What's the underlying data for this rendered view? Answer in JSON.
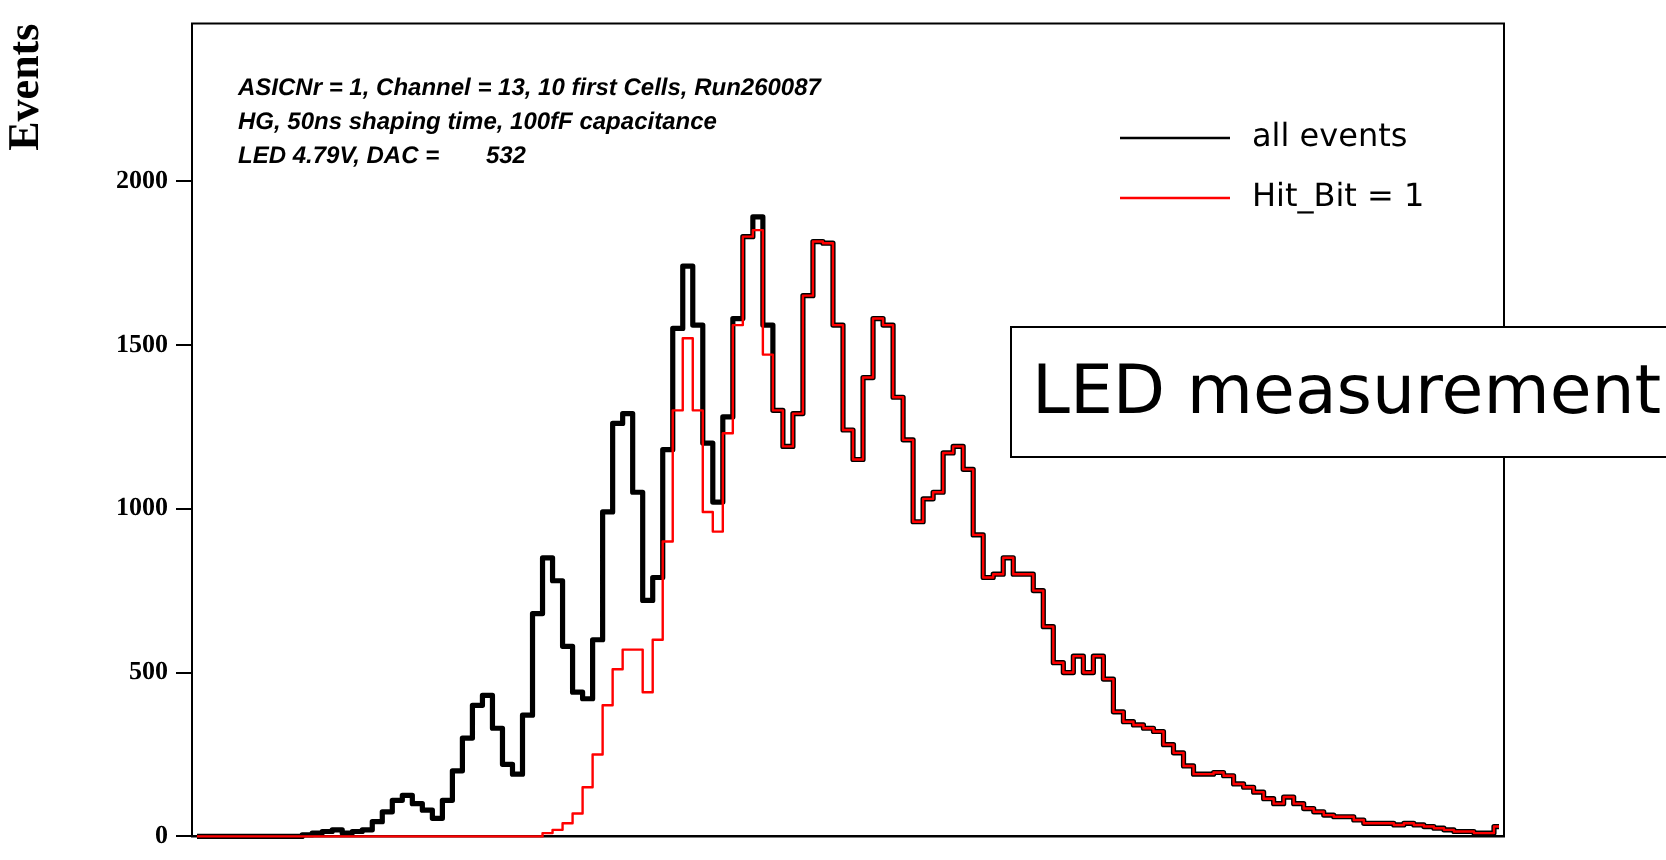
{
  "chart_data": {
    "type": "step",
    "ylabel": "Events",
    "annotations": [
      "ASICNr = 1, Channel = 13, 10 first Cells, Run260087",
      "HG, 50ns shaping time, 100fF capacitance",
      "LED 4.79V, DAC =       532",
      "LED measurement"
    ],
    "categories": [
      null,
      null,
      null,
      null,
      null,
      null,
      null,
      null,
      null,
      null,
      null,
      null,
      null,
      null,
      null,
      null,
      null,
      null,
      null,
      null,
      null,
      null,
      null,
      null,
      null,
      null,
      null,
      null,
      null,
      null,
      null,
      null,
      null,
      null,
      null,
      null,
      null,
      null,
      null,
      null,
      null,
      null,
      null,
      null,
      null,
      null,
      null,
      null,
      null,
      null,
      null,
      null,
      null,
      null,
      null,
      null,
      null,
      null,
      null,
      null,
      null,
      null,
      null,
      null,
      null,
      null,
      null,
      null,
      null,
      null,
      null,
      null,
      null,
      null,
      null,
      null,
      null,
      null,
      null,
      null,
      null,
      null,
      null,
      null,
      null,
      null,
      null,
      null,
      null,
      null,
      null,
      null,
      null,
      null,
      null,
      null,
      null,
      null,
      null,
      null,
      null,
      null,
      null,
      null,
      null,
      null,
      null,
      null,
      null,
      null,
      null,
      null,
      null,
      null,
      null,
      null,
      null,
      null,
      null,
      null,
      null,
      null,
      null,
      null,
      null,
      null,
      null,
      null,
      null,
      null,
      null
    ],
    "series": [
      {
        "name": "all events",
        "color": "#000000",
        "values": [
          0,
          0,
          0,
          0,
          0,
          0,
          0,
          0,
          0,
          0,
          0,
          5,
          10,
          15,
          20,
          10,
          15,
          20,
          45,
          75,
          110,
          125,
          100,
          80,
          55,
          110,
          200,
          300,
          400,
          430,
          330,
          220,
          190,
          370,
          680,
          850,
          780,
          580,
          440,
          420,
          600,
          990,
          1260,
          1290,
          1050,
          720,
          790,
          1180,
          1550,
          1740,
          1560,
          1200,
          1020,
          1280,
          1580,
          1830,
          1890,
          1560,
          1300,
          1190,
          1290,
          1650,
          1815,
          1810,
          1560,
          1240,
          1150,
          1400,
          1580,
          1560,
          1340,
          1210,
          960,
          1030,
          1050,
          1170,
          1190,
          1120,
          920,
          790,
          800,
          850,
          800,
          800,
          750,
          640,
          530,
          500,
          550,
          500,
          550,
          480,
          380,
          350,
          340,
          330,
          320,
          280,
          255,
          215,
          190,
          190,
          195,
          185,
          160,
          150,
          135,
          115,
          100,
          120,
          100,
          85,
          75,
          65,
          60,
          60,
          50,
          40,
          40,
          40,
          35,
          40,
          35,
          30,
          25,
          20,
          15,
          15,
          10,
          10,
          30
        ]
      },
      {
        "name": "Hit_Bit = 1",
        "color": "#ff0000",
        "values": [
          0,
          0,
          0,
          0,
          0,
          0,
          0,
          0,
          0,
          0,
          0,
          0,
          0,
          0,
          0,
          0,
          0,
          0,
          0,
          0,
          0,
          0,
          0,
          0,
          0,
          0,
          0,
          0,
          0,
          0,
          0,
          0,
          0,
          0,
          0,
          10,
          20,
          40,
          70,
          150,
          250,
          400,
          510,
          570,
          570,
          440,
          600,
          900,
          1300,
          1520,
          1300,
          990,
          930,
          1230,
          1560,
          1830,
          1850,
          1470,
          1300,
          1190,
          1290,
          1650,
          1815,
          1810,
          1560,
          1240,
          1150,
          1400,
          1580,
          1560,
          1340,
          1210,
          960,
          1030,
          1050,
          1170,
          1190,
          1120,
          920,
          790,
          800,
          850,
          800,
          800,
          750,
          640,
          530,
          500,
          550,
          500,
          550,
          480,
          380,
          350,
          340,
          330,
          320,
          280,
          255,
          215,
          190,
          190,
          195,
          185,
          160,
          150,
          135,
          115,
          100,
          120,
          100,
          85,
          75,
          65,
          60,
          60,
          50,
          40,
          40,
          40,
          35,
          40,
          35,
          30,
          25,
          20,
          15,
          15,
          10,
          10,
          30
        ]
      }
    ],
    "ylim": [
      0,
      2480
    ],
    "yticks": [
      0,
      500,
      1000,
      1500,
      2000
    ],
    "legend": "top right",
    "grid": false
  }
}
